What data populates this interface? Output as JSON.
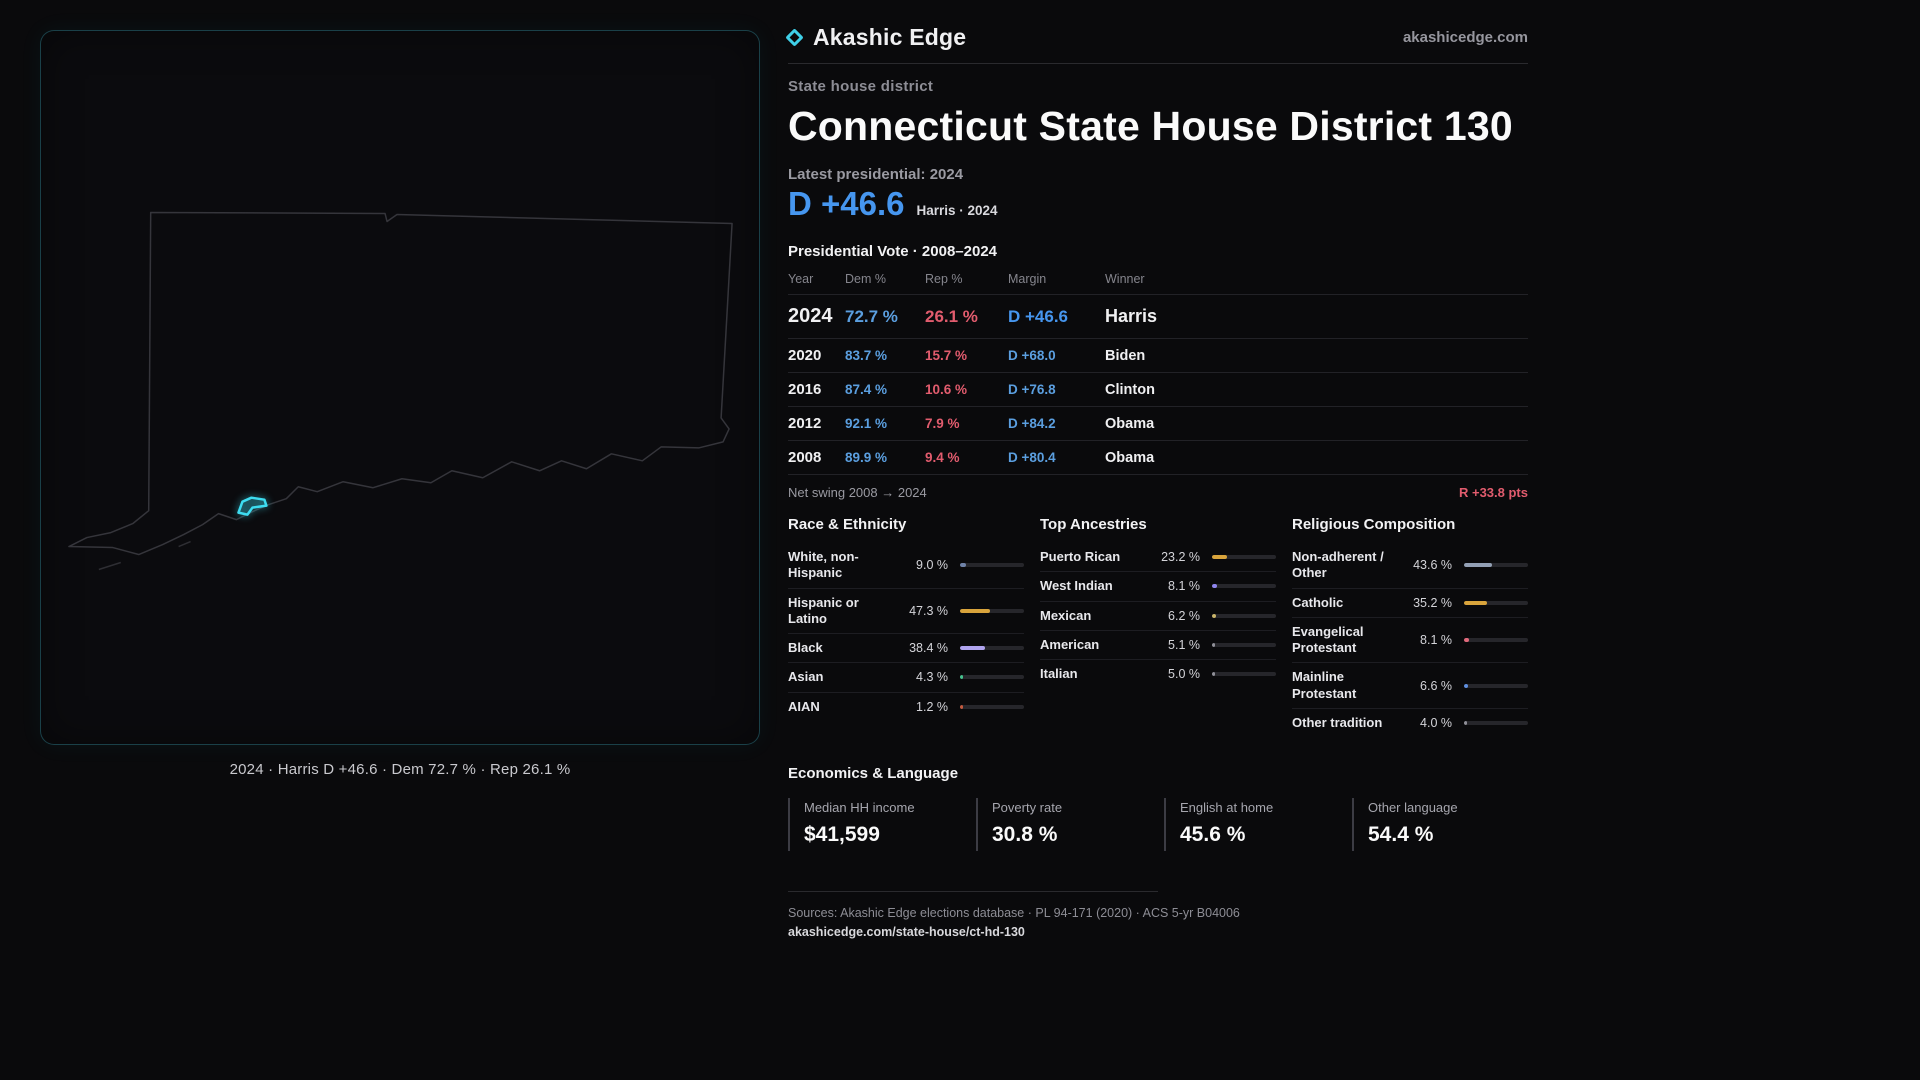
{
  "header": {
    "brand": "Akashic Edge",
    "site": "akashicedge.com"
  },
  "map": {
    "caption": "2024 · Harris D +46.6 · Dem 72.7 % · Rep 26.1 %"
  },
  "district": {
    "kicker": "State house district",
    "title": "Connecticut State House District 130",
    "latest_label": "Latest presidential: 2024",
    "margin_big": "D +46.6",
    "margin_note": "Harris · 2024"
  },
  "swing": {
    "label": "Net swing 2008 → 2024",
    "value": "R +33.8 pts"
  },
  "footer": {
    "sources": "Sources: Akashic Edge elections database · PL 94-171 (2020) · ACS 5-yr B04006",
    "link": "akashicedge.com/state-house/ct-hd-130"
  },
  "colors": {
    "accent_cyan": "#3fd0e8",
    "dem_blue": "#4696ef",
    "rep_red": "#e25c6e"
  },
  "chart_data": [
    {
      "type": "table",
      "title": "Presidential Vote · 2008–2024",
      "columns": [
        "Year",
        "Dem %",
        "Rep %",
        "Margin",
        "Winner"
      ],
      "rows": [
        {
          "year": "2024",
          "dem": "72.7 %",
          "rep": "26.1 %",
          "margin": "D +46.6",
          "winner": "Harris",
          "featured": true
        },
        {
          "year": "2020",
          "dem": "83.7 %",
          "rep": "15.7 %",
          "margin": "D +68.0",
          "winner": "Biden",
          "featured": false
        },
        {
          "year": "2016",
          "dem": "87.4 %",
          "rep": "10.6 %",
          "margin": "D +76.8",
          "winner": "Clinton",
          "featured": false
        },
        {
          "year": "2012",
          "dem": "92.1 %",
          "rep": "7.9 %",
          "margin": "D +84.2",
          "winner": "Obama",
          "featured": false
        },
        {
          "year": "2008",
          "dem": "89.9 %",
          "rep": "9.4 %",
          "margin": "D +80.4",
          "winner": "Obama",
          "featured": false
        }
      ]
    },
    {
      "type": "bar",
      "title": "Race & Ethnicity",
      "scale_max": 100,
      "rows": [
        {
          "label": "White, non-Hispanic",
          "value_label": "9.0 %",
          "value": 9.0,
          "color": "#6f82a8"
        },
        {
          "label": "Hispanic or Latino",
          "value_label": "47.3 %",
          "value": 47.3,
          "color": "#d9a43c"
        },
        {
          "label": "Black",
          "value_label": "38.4 %",
          "value": 38.4,
          "color": "#b0a4ef"
        },
        {
          "label": "Asian",
          "value_label": "4.3 %",
          "value": 4.3,
          "color": "#46c28e"
        },
        {
          "label": "AIAN",
          "value_label": "1.2 %",
          "value": 1.2,
          "color": "#c45a3f"
        }
      ]
    },
    {
      "type": "bar",
      "title": "Top Ancestries",
      "scale_max": 100,
      "rows": [
        {
          "label": "Puerto Rican",
          "value_label": "23.2 %",
          "value": 23.2,
          "color": "#d9a43c"
        },
        {
          "label": "West Indian",
          "value_label": "8.1 %",
          "value": 8.1,
          "color": "#8f85ef"
        },
        {
          "label": "Mexican",
          "value_label": "6.2 %",
          "value": 6.2,
          "color": "#c9b46a"
        },
        {
          "label": "American",
          "value_label": "5.1 %",
          "value": 5.1,
          "color": "#8f8f98"
        },
        {
          "label": "Italian",
          "value_label": "5.0 %",
          "value": 5.0,
          "color": "#8f8f98"
        }
      ]
    },
    {
      "type": "bar",
      "title": "Religious Composition",
      "scale_max": 100,
      "rows": [
        {
          "label": "Non-adherent / Other",
          "value_label": "43.6 %",
          "value": 43.6,
          "color": "#93a0b5"
        },
        {
          "label": "Catholic",
          "value_label": "35.2 %",
          "value": 35.2,
          "color": "#d9a43c"
        },
        {
          "label": "Evangelical Protestant",
          "value_label": "8.1 %",
          "value": 8.1,
          "color": "#e2697c"
        },
        {
          "label": "Mainline Protestant",
          "value_label": "6.6 %",
          "value": 6.6,
          "color": "#5f8fe0"
        },
        {
          "label": "Other tradition",
          "value_label": "4.0 %",
          "value": 4.0,
          "color": "#8f8f98"
        }
      ]
    },
    {
      "type": "stats",
      "title": "Economics & Language",
      "stats": [
        {
          "label": "Median HH income",
          "value": "$41,599"
        },
        {
          "label": "Poverty rate",
          "value": "30.8 %"
        },
        {
          "label": "English at home",
          "value": "45.6 %"
        },
        {
          "label": "Other language",
          "value": "54.4 %"
        }
      ]
    }
  ]
}
